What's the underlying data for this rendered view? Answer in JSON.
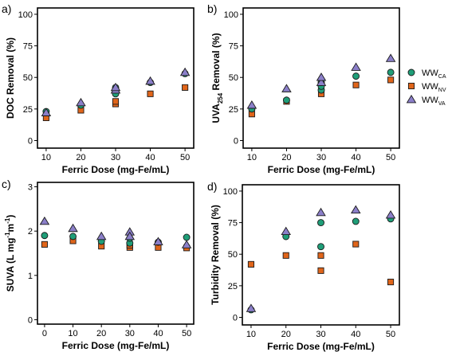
{
  "colors": {
    "WW_CA": "#1f9e78",
    "WW_NV": "#e0651a",
    "WW_VA": "#8b7fc9"
  },
  "legend": [
    {
      "key": "WW_CA",
      "main": "WW",
      "sub": "CA",
      "marker": "circle"
    },
    {
      "key": "WW_NV",
      "main": "WW",
      "sub": "NV",
      "marker": "square"
    },
    {
      "key": "WW_VA",
      "main": "WW",
      "sub": "VA",
      "marker": "triangle"
    }
  ],
  "chart_data": [
    {
      "id": "a",
      "panel_label": "a)",
      "type": "scatter",
      "xlabel": "Ferric Dose (mg-Fe/mL)",
      "ylabel": {
        "main": "DOC Removal (%)",
        "sub": "",
        "rest": ""
      },
      "xticks": [
        10,
        20,
        30,
        40,
        50
      ],
      "yticks": [
        0,
        25,
        50,
        75,
        100
      ],
      "xlim": [
        7.5,
        52.5
      ],
      "ylim": [
        -6,
        105
      ],
      "series": [
        {
          "key": "WW_CA",
          "marker": "circle",
          "x": [
            10,
            20,
            30,
            30,
            30,
            40,
            50
          ],
          "y": [
            23,
            28,
            37,
            40,
            42,
            46,
            53
          ]
        },
        {
          "key": "WW_NV",
          "marker": "square",
          "x": [
            10,
            20,
            30,
            30,
            40,
            50
          ],
          "y": [
            18,
            24,
            29,
            31,
            37,
            42
          ]
        },
        {
          "key": "WW_VA",
          "marker": "triangle",
          "x": [
            10,
            20,
            30,
            30,
            40,
            50
          ],
          "y": [
            22,
            30,
            40,
            42,
            47,
            54
          ]
        }
      ]
    },
    {
      "id": "b",
      "panel_label": "b)",
      "type": "scatter",
      "xlabel": "Ferric Dose (mg-Fe/mL)",
      "ylabel": {
        "main": "UVA",
        "sub": "254",
        "rest": " Removal (%)"
      },
      "xticks": [
        10,
        20,
        30,
        40,
        50
      ],
      "yticks": [
        0,
        25,
        50,
        75,
        100
      ],
      "xlim": [
        7.5,
        52.5
      ],
      "ylim": [
        -6,
        105
      ],
      "series": [
        {
          "key": "WW_CA",
          "marker": "circle",
          "x": [
            10,
            20,
            30,
            30,
            30,
            40,
            50
          ],
          "y": [
            25,
            32,
            40,
            43,
            46,
            51,
            54
          ]
        },
        {
          "key": "WW_NV",
          "marker": "square",
          "x": [
            10,
            20,
            30,
            40,
            50
          ],
          "y": [
            21,
            31,
            37,
            44,
            48
          ]
        },
        {
          "key": "WW_VA",
          "marker": "triangle",
          "x": [
            10,
            20,
            30,
            30,
            40,
            50
          ],
          "y": [
            28,
            41,
            46,
            50,
            58,
            65
          ]
        }
      ]
    },
    {
      "id": "c",
      "panel_label": "c)",
      "type": "scatter",
      "xlabel": "Ferric Dose (mg-Fe/mL)",
      "ylabel": {
        "main": "SUVA (L mg",
        "sup1": "-1",
        "mid": "m",
        "sup2": "-1",
        "rest": ")"
      },
      "xticks": [
        0,
        10,
        20,
        30,
        40,
        50
      ],
      "yticks": [
        0,
        1,
        2,
        3
      ],
      "xlim": [
        -2.5,
        52.5
      ],
      "ylim": [
        -0.1,
        3.1
      ],
      "series": [
        {
          "key": "WW_CA",
          "marker": "circle",
          "x": [
            0,
            10,
            20,
            30,
            30,
            40,
            50
          ],
          "y": [
            1.9,
            1.88,
            1.77,
            1.73,
            1.84,
            1.75,
            1.86
          ]
        },
        {
          "key": "WW_NV",
          "marker": "square",
          "x": [
            0,
            10,
            20,
            30,
            30,
            40,
            50
          ],
          "y": [
            1.7,
            1.78,
            1.66,
            1.63,
            1.68,
            1.63,
            1.62
          ]
        },
        {
          "key": "WW_VA",
          "marker": "triangle",
          "x": [
            0,
            10,
            20,
            30,
            30,
            40,
            50
          ],
          "y": [
            2.22,
            2.06,
            1.88,
            1.98,
            1.88,
            1.76,
            1.69
          ]
        }
      ]
    },
    {
      "id": "d",
      "panel_label": "d)",
      "type": "scatter",
      "xlabel": "Ferric Dose (mg-Fe/mL)",
      "ylabel": {
        "main": "Turbidity Removal (%)",
        "sub": "",
        "rest": ""
      },
      "xticks": [
        10,
        20,
        30,
        40,
        50
      ],
      "yticks": [
        0,
        25,
        50,
        75,
        100
      ],
      "xlim": [
        7.5,
        52.5
      ],
      "ylim": [
        -6,
        105
      ],
      "series": [
        {
          "key": "WW_CA",
          "marker": "circle",
          "x": [
            10,
            20,
            30,
            30,
            40,
            50
          ],
          "y": [
            6,
            64,
            56,
            75,
            76,
            78
          ]
        },
        {
          "key": "WW_NV",
          "marker": "square",
          "x": [
            10,
            20,
            30,
            30,
            40,
            50
          ],
          "y": [
            42,
            49,
            37,
            49,
            58,
            28
          ]
        },
        {
          "key": "WW_VA",
          "marker": "triangle",
          "x": [
            10,
            20,
            30,
            40,
            50
          ],
          "y": [
            7,
            68,
            83,
            85,
            81
          ]
        }
      ]
    }
  ]
}
